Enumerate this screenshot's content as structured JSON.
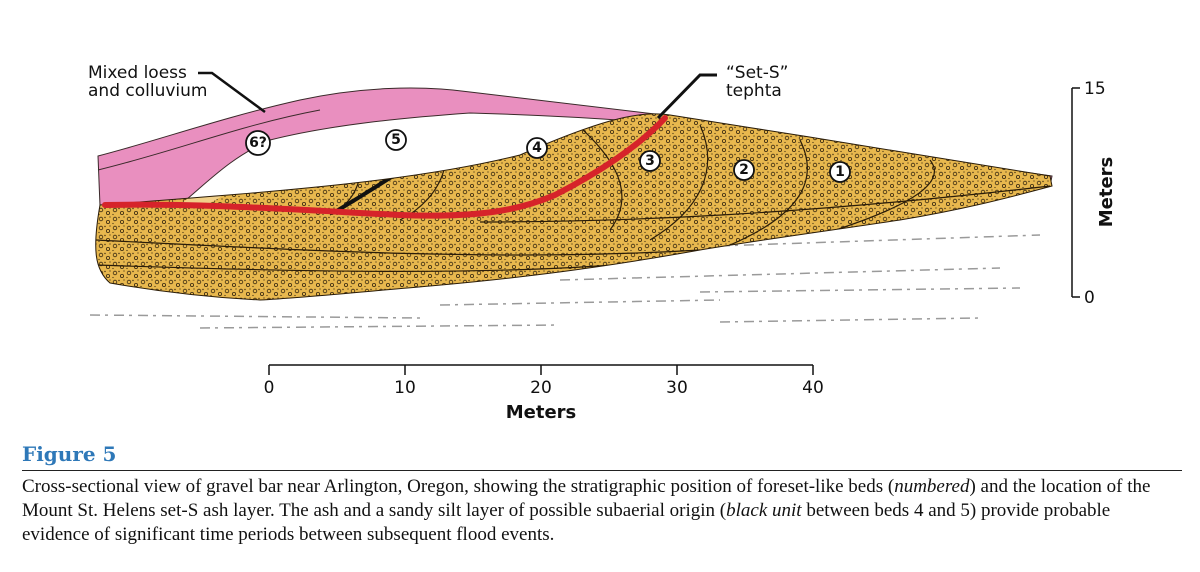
{
  "labels": {
    "loess_line1": "Mixed loess",
    "loess_line2": "and colluvium",
    "tephra_line1": "“Set-S”",
    "tephra_line2": "tephta"
  },
  "beds": [
    "6?",
    "5",
    "4",
    "3",
    "2",
    "1"
  ],
  "x_axis": {
    "title": "Meters",
    "ticks": [
      "0",
      "10",
      "20",
      "30",
      "40"
    ]
  },
  "y_axis": {
    "title": "Meters",
    "ticks": [
      "15",
      "0"
    ]
  },
  "caption": {
    "title": "Figure 5",
    "p1": "Cross-sectional view of gravel bar near Arlington, Oregon, showing the stratigraphic position of foreset-like beds (",
    "i1": "numbered",
    "p2": ") and the location of the Mount St. Helens set-S ash layer. The ash and a sandy silt layer of possible subaerial origin (",
    "i2": "black unit",
    "p3": " between beds 4 and 5) provide probable evidence of significant time periods between subsequent flood events."
  },
  "colors": {
    "gravel": "#e8b84e",
    "loess": "#e98fbf",
    "tephra": "#d6232a",
    "caption_title": "#2e78b8"
  }
}
